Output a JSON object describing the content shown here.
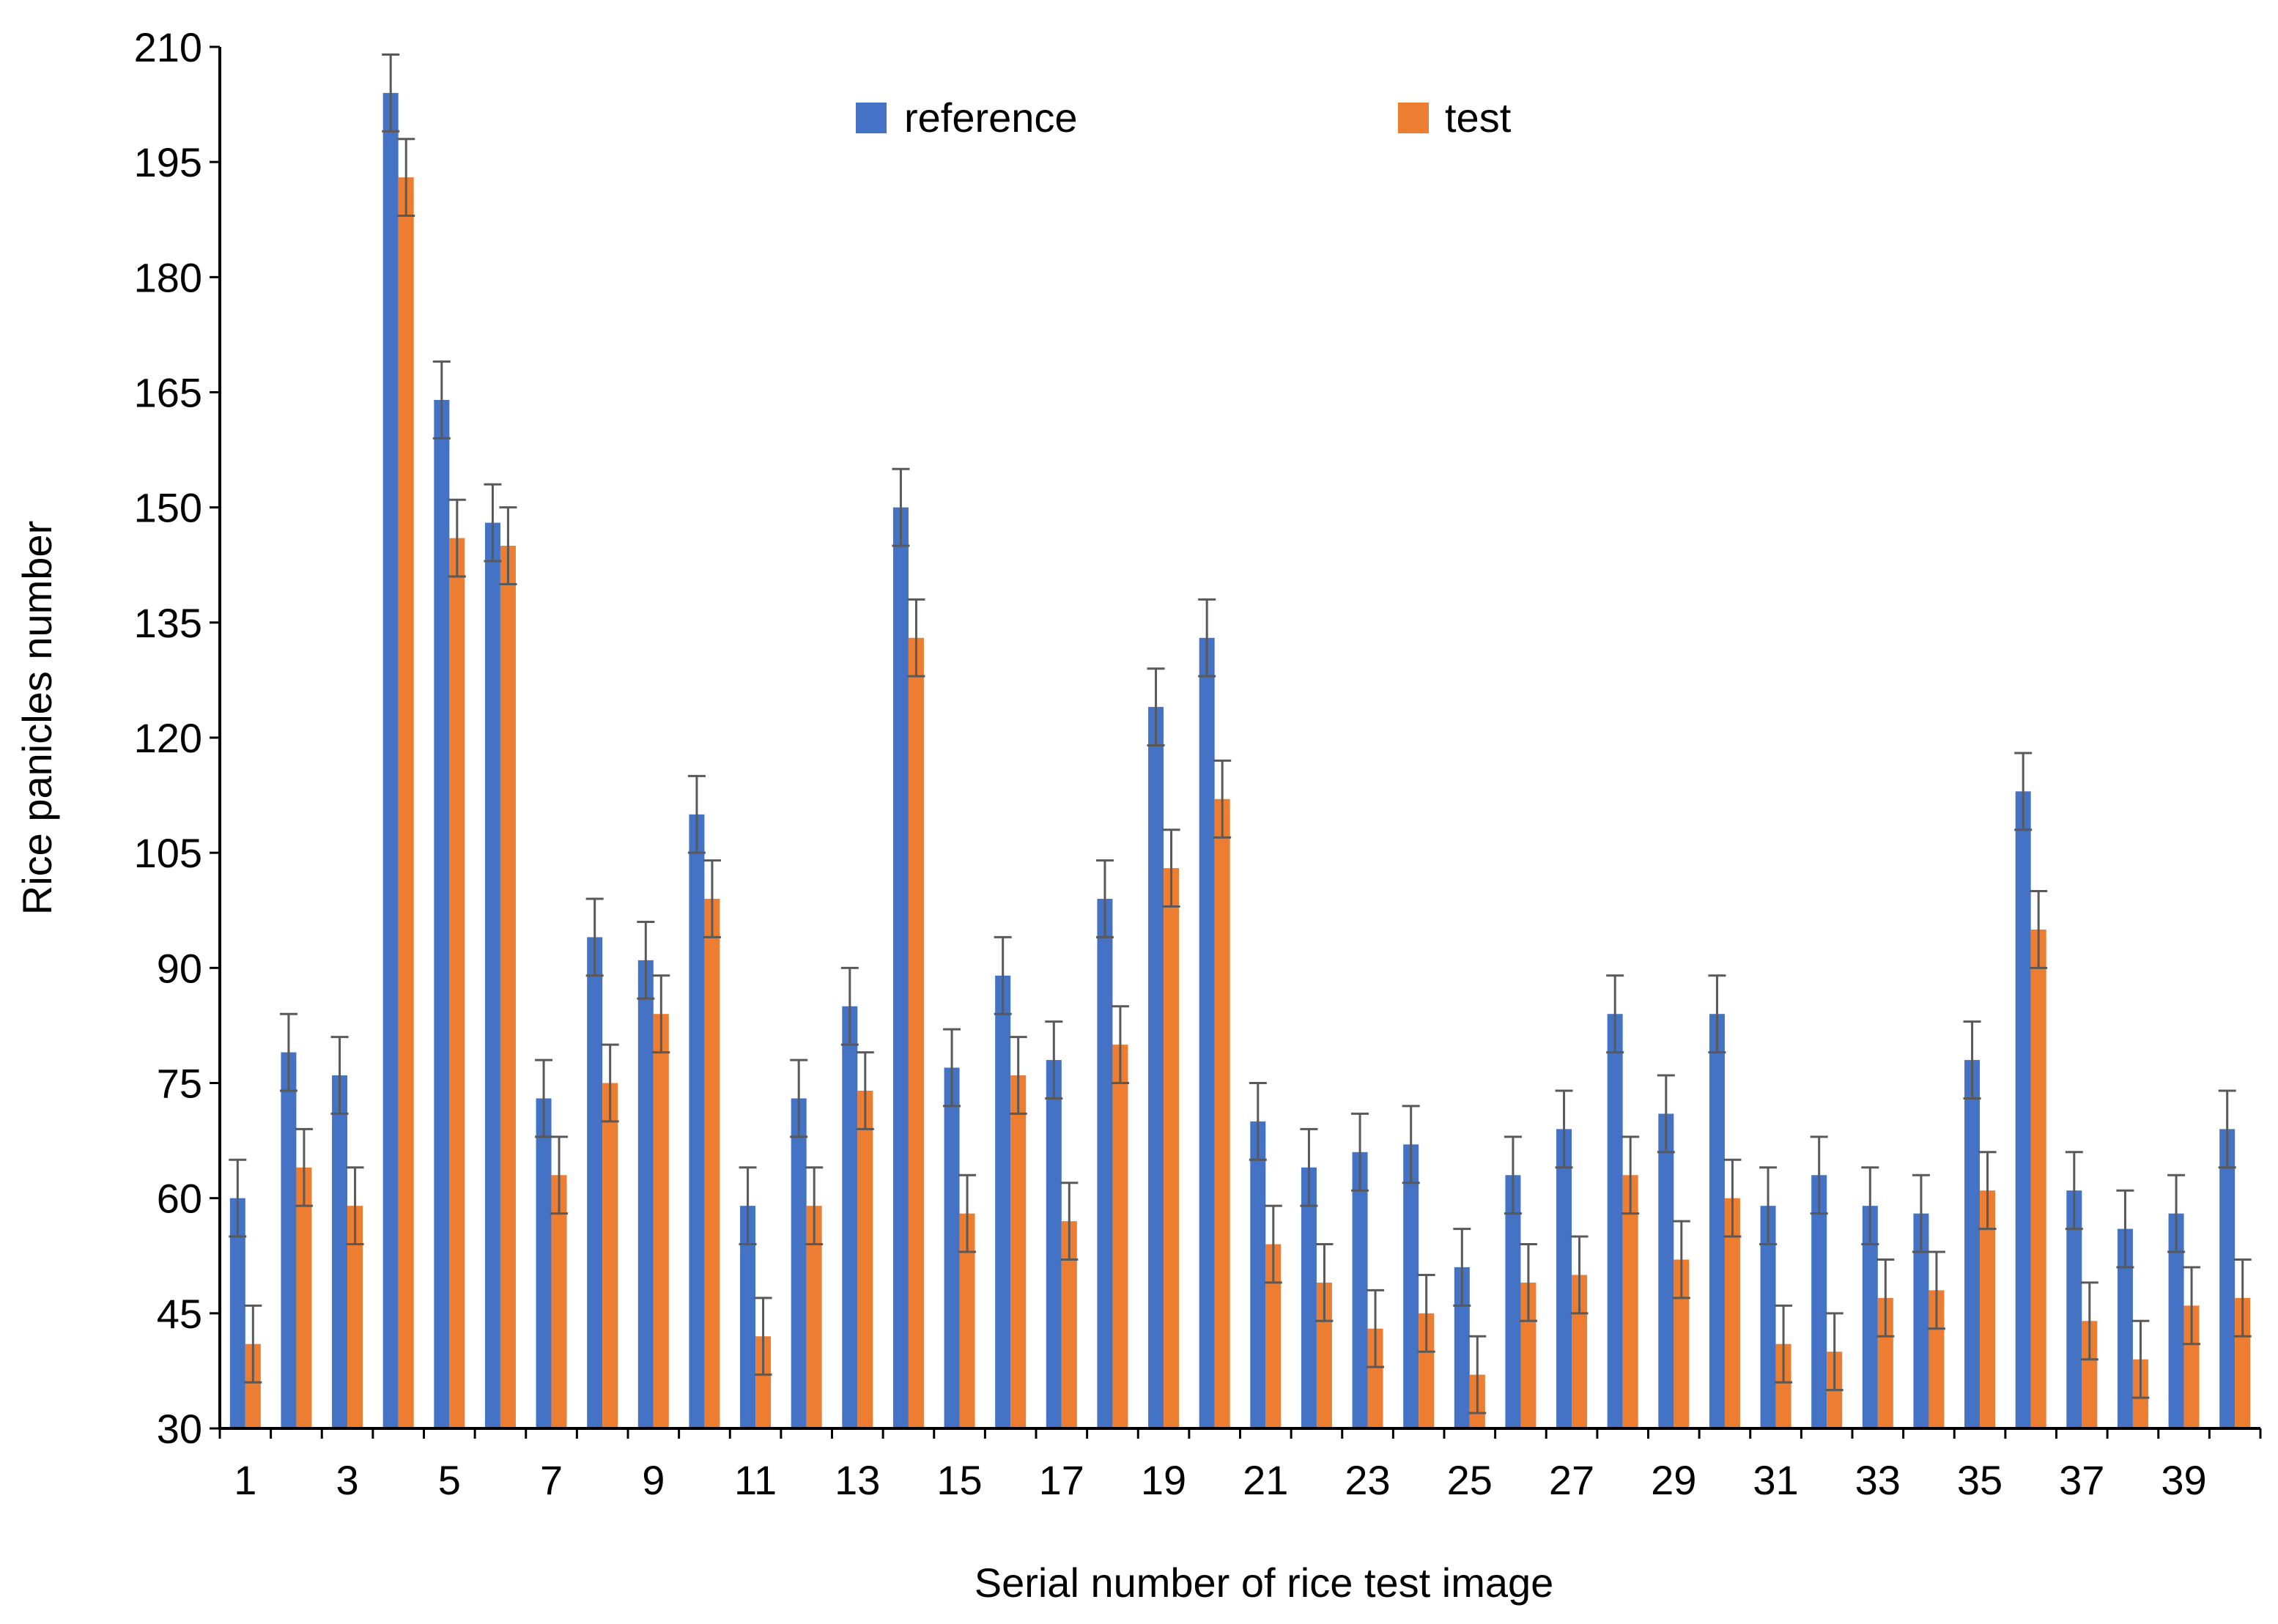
{
  "chart_data": {
    "type": "bar",
    "title": "",
    "xlabel": "Serial number of rice  test image",
    "ylabel": "Rice panicles  number",
    "ylim": [
      30,
      210
    ],
    "yticks": [
      30,
      45,
      60,
      75,
      90,
      105,
      120,
      135,
      150,
      165,
      180,
      195,
      210
    ],
    "error_bar": 5,
    "legend_position": "top-center",
    "categories": [
      "1",
      "2",
      "3",
      "4",
      "5",
      "6",
      "7",
      "8",
      "9",
      "10",
      "11",
      "12",
      "13",
      "14",
      "15",
      "16",
      "17",
      "18",
      "19",
      "20",
      "21",
      "22",
      "23",
      "24",
      "25",
      "26",
      "27",
      "28",
      "29",
      "30",
      "31",
      "32",
      "33",
      "34",
      "35",
      "36",
      "37",
      "38",
      "39",
      "40"
    ],
    "visible_x_ticks": [
      "1",
      "3",
      "5",
      "7",
      "9",
      "11",
      "13",
      "15",
      "17",
      "19",
      "21",
      "23",
      "25",
      "27",
      "29",
      "31",
      "33",
      "35",
      "37",
      "39"
    ],
    "series": [
      {
        "name": "reference",
        "color": "#4472C4",
        "values": [
          60,
          79,
          76,
          204,
          164,
          148,
          73,
          94,
          91,
          110,
          59,
          73,
          85,
          150,
          77,
          89,
          78,
          99,
          124,
          133,
          70,
          64,
          66,
          67,
          51,
          63,
          69,
          84,
          71,
          84,
          59,
          63,
          59,
          58,
          78,
          113,
          61,
          56,
          58,
          69
        ]
      },
      {
        "name": "test",
        "color": "#ED7D31",
        "values": [
          41,
          64,
          59,
          193,
          146,
          145,
          63,
          75,
          84,
          99,
          42,
          59,
          74,
          133,
          58,
          76,
          57,
          80,
          103,
          112,
          54,
          49,
          43,
          45,
          37,
          49,
          50,
          63,
          52,
          60,
          41,
          40,
          47,
          48,
          61,
          95,
          44,
          39,
          46,
          47
        ]
      }
    ],
    "axis_color": "#000000",
    "error_bar_color": "#595959"
  }
}
